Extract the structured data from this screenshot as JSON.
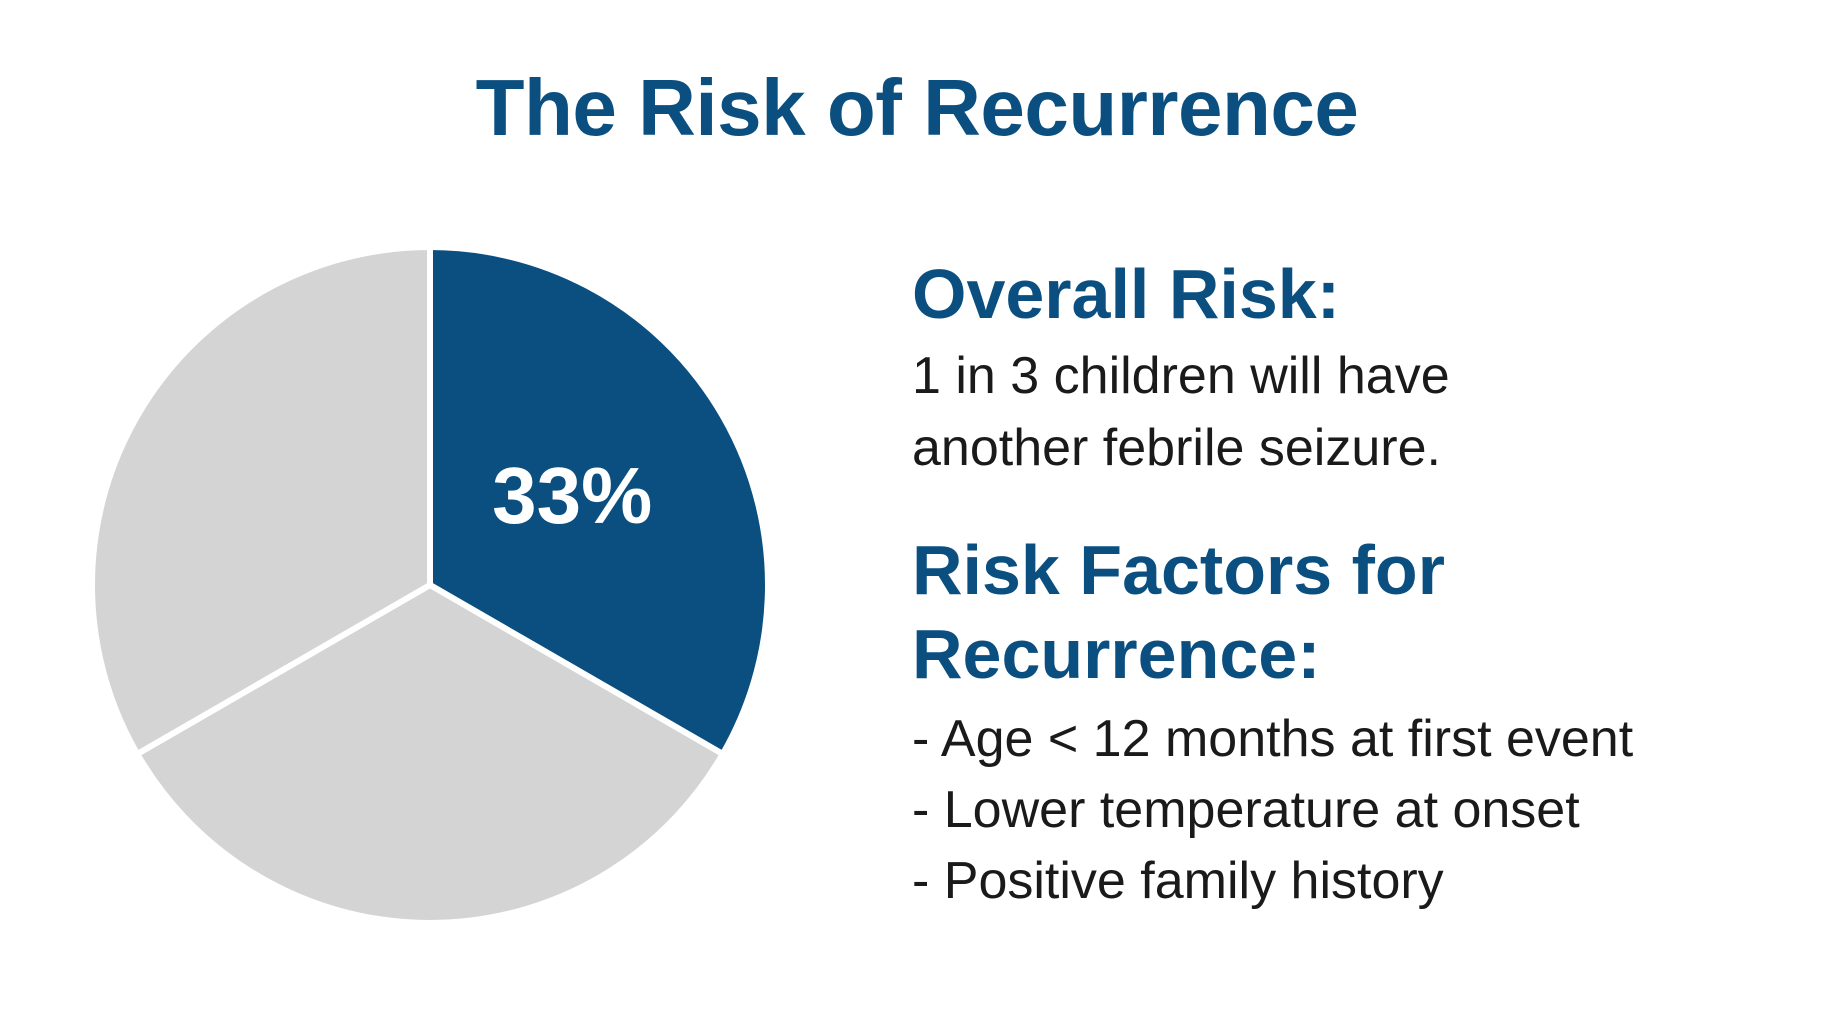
{
  "title": "The Risk of Recurrence",
  "colors": {
    "accent": "#0b4f80",
    "slice_gray": "#d4d4d4",
    "text": "#1a1a1a"
  },
  "chart_data": {
    "type": "pie",
    "slices": [
      {
        "label": "33%",
        "value": 33.3,
        "color": "#0b4f80",
        "highlighted": true
      },
      {
        "label": "",
        "value": 33.3,
        "color": "#d4d4d4",
        "highlighted": false
      },
      {
        "label": "",
        "value": 33.3,
        "color": "#d4d4d4",
        "highlighted": false
      }
    ]
  },
  "overall": {
    "heading": "Overall Risk:",
    "lines": [
      "1 in 3 children will have",
      "another febrile seizure."
    ]
  },
  "factors": {
    "heading_lines": [
      "Risk Factors for",
      "Recurrence:"
    ],
    "items": [
      "- Age < 12 months at first event",
      "- Lower temperature at onset",
      "- Positive family history"
    ]
  }
}
